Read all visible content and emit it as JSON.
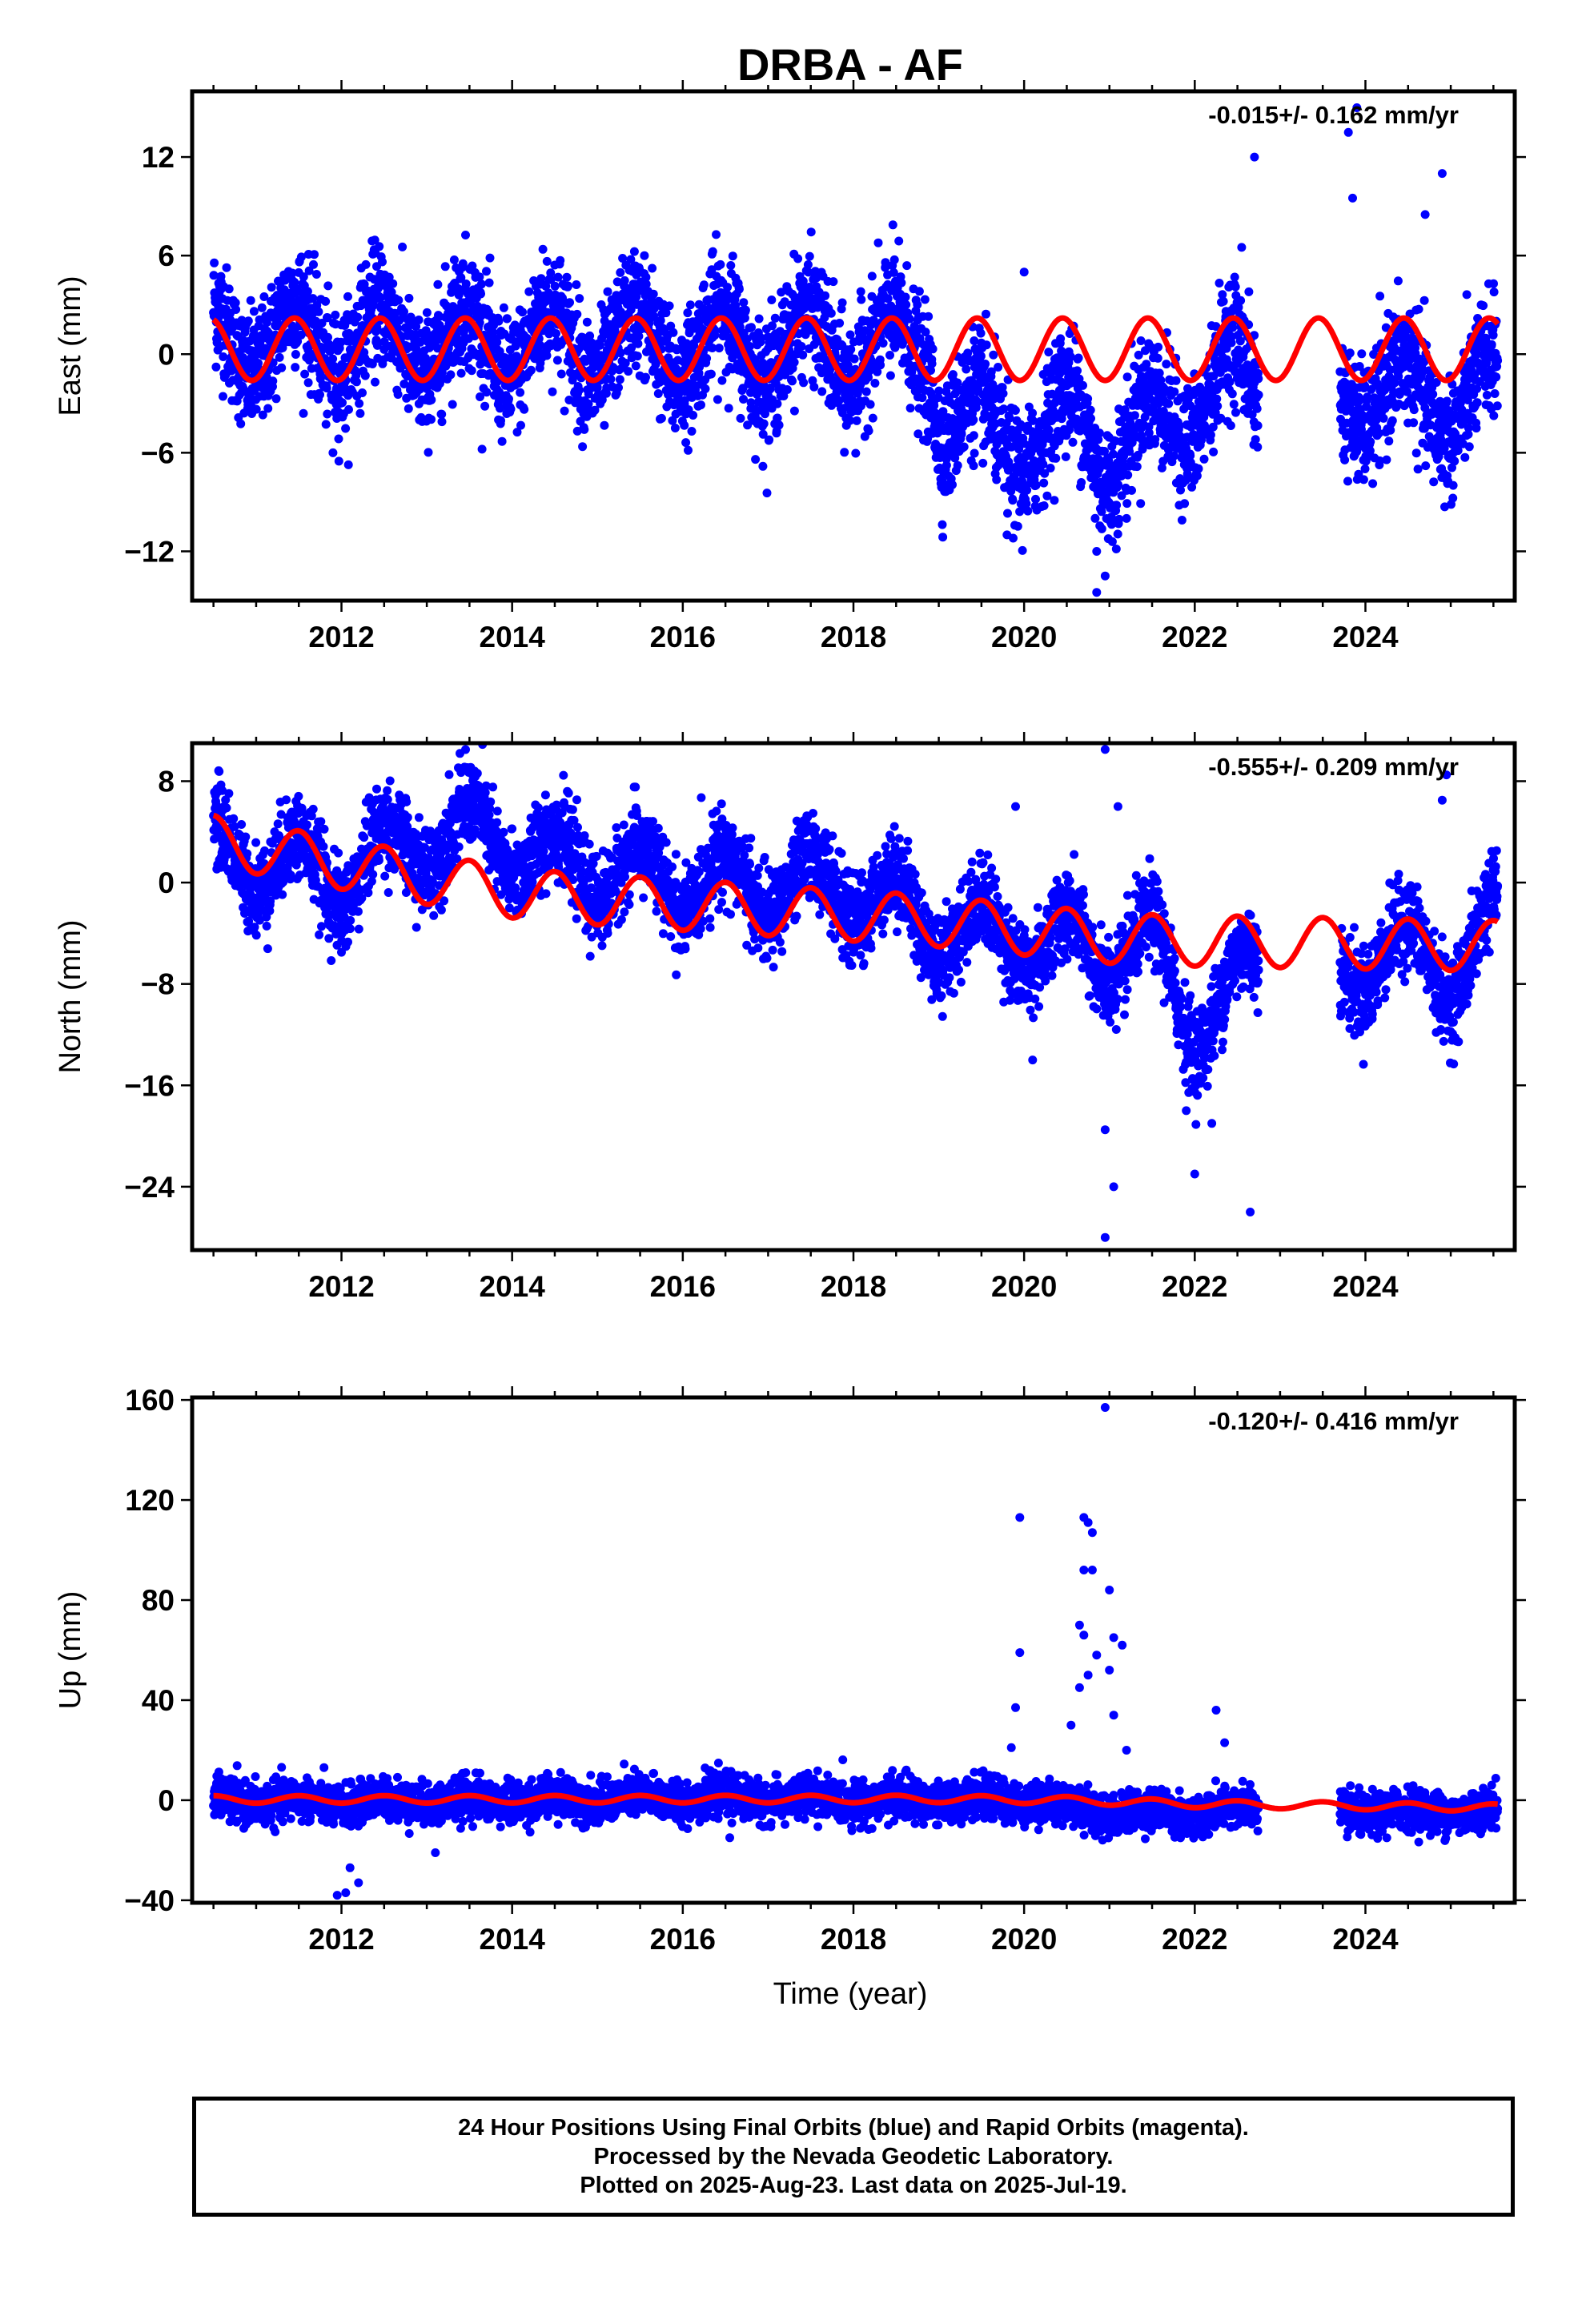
{
  "title": "DRBA - AF",
  "xlabel": "Time (year)",
  "colors": {
    "final_orbits": "#0000ff",
    "model_fit": "#ff0000",
    "frame": "#000000"
  },
  "notes": [
    "24 Hour Positions Using Final Orbits (blue) and Rapid Orbits (magenta).",
    "Processed by the Nevada Geodetic Laboratory.",
    "Plotted on 2025-Aug-23. Last data on 2025-Jul-19."
  ],
  "chart_data": [
    {
      "type": "scatter",
      "component": "East",
      "ylabel": "East (mm)",
      "rate_label": "-0.015+/- 0.162 mm/yr",
      "xlim": [
        2010.25,
        2025.75
      ],
      "ylim": [
        -15,
        16
      ],
      "xticks": [
        2012,
        2014,
        2016,
        2018,
        2020,
        2022,
        2024
      ],
      "yticks": [
        -12,
        -6,
        0,
        6,
        12
      ],
      "data_range": [
        2010.5,
        2025.55
      ],
      "gaps": [
        [
          2022.75,
          2023.7
        ]
      ],
      "mean_envelope": [
        {
          "x": 2010.5,
          "y": 1.0
        },
        {
          "x": 2018.9,
          "y": 0.3
        },
        {
          "x": 2019.05,
          "y": -4.0
        },
        {
          "x": 2019.6,
          "y": -4.5
        },
        {
          "x": 2020.2,
          "y": -5.5
        },
        {
          "x": 2020.6,
          "y": -3.5
        },
        {
          "x": 2021.0,
          "y": -6.0
        },
        {
          "x": 2021.5,
          "y": -4.5
        },
        {
          "x": 2022.0,
          "y": -3.0
        },
        {
          "x": 2022.4,
          "y": -1.0
        },
        {
          "x": 2022.75,
          "y": -2.5
        },
        {
          "x": 2023.7,
          "y": -2.0
        },
        {
          "x": 2024.2,
          "y": -2.5
        },
        {
          "x": 2025.0,
          "y": -3.0
        },
        {
          "x": 2025.55,
          "y": -2.0
        }
      ],
      "seasonal_amplitude": 2.2,
      "scatter_sigma": 1.8,
      "outliers": [
        {
          "x": 2023.9,
          "y": 15.0
        },
        {
          "x": 2023.8,
          "y": 13.5
        },
        {
          "x": 2022.7,
          "y": 12.0
        },
        {
          "x": 2024.9,
          "y": 11.0
        },
        {
          "x": 2023.85,
          "y": 9.5
        },
        {
          "x": 2024.7,
          "y": 8.5
        },
        {
          "x": 2020.0,
          "y": 5.0
        },
        {
          "x": 2020.85,
          "y": -12.0
        },
        {
          "x": 2020.95,
          "y": -13.5
        },
        {
          "x": 2020.85,
          "y": -14.5
        },
        {
          "x": 2019.8,
          "y": -11.0
        },
        {
          "x": 2011.9,
          "y": -6.0
        },
        {
          "x": 2022.55,
          "y": 6.5
        },
        {
          "x": 2021.2,
          "y": -10.0
        }
      ],
      "model": {
        "offset": [
          {
            "x": 2010.5,
            "y": 0.3
          },
          {
            "x": 2018.9,
            "y": 0.3
          },
          {
            "x": 2025.55,
            "y": 0.3
          }
        ],
        "annual_amplitude": 1.9,
        "peak_phase": 0.45
      }
    },
    {
      "type": "scatter",
      "component": "North",
      "ylabel": "North (mm)",
      "rate_label": "-0.555+/- 0.209 mm/yr",
      "xlim": [
        2010.25,
        2025.75
      ],
      "ylim": [
        -29,
        11
      ],
      "xticks": [
        2012,
        2014,
        2016,
        2018,
        2020,
        2022,
        2024
      ],
      "yticks": [
        -24,
        -16,
        -8,
        0,
        8
      ],
      "data_range": [
        2010.5,
        2025.55
      ],
      "gaps": [
        [
          2022.75,
          2023.7
        ]
      ],
      "mean_envelope": [
        {
          "x": 2010.5,
          "y": 2.5
        },
        {
          "x": 2012.0,
          "y": 0.5
        },
        {
          "x": 2013.0,
          "y": 3.5
        },
        {
          "x": 2013.6,
          "y": 4.0
        },
        {
          "x": 2014.5,
          "y": 1.5
        },
        {
          "x": 2016.0,
          "y": 0.0
        },
        {
          "x": 2018.0,
          "y": -0.5
        },
        {
          "x": 2019.0,
          "y": -3.5
        },
        {
          "x": 2020.0,
          "y": -4.5
        },
        {
          "x": 2021.0,
          "y": -5.5
        },
        {
          "x": 2021.5,
          "y": -5.0
        },
        {
          "x": 2022.0,
          "y": -11.0
        },
        {
          "x": 2022.3,
          "y": -10.0
        },
        {
          "x": 2022.75,
          "y": -6.0
        },
        {
          "x": 2023.7,
          "y": -7.5
        },
        {
          "x": 2024.2,
          "y": -5.0
        },
        {
          "x": 2025.0,
          "y": -7.0
        },
        {
          "x": 2025.55,
          "y": -3.0
        }
      ],
      "seasonal_amplitude": 2.5,
      "scatter_sigma": 1.7,
      "outliers": [
        {
          "x": 2020.95,
          "y": 10.5
        },
        {
          "x": 2024.95,
          "y": 8.5
        },
        {
          "x": 2021.1,
          "y": 6.0
        },
        {
          "x": 2019.9,
          "y": 6.0
        },
        {
          "x": 2024.9,
          "y": 6.5
        },
        {
          "x": 2020.95,
          "y": -28.0
        },
        {
          "x": 2021.05,
          "y": -24.0
        },
        {
          "x": 2020.95,
          "y": -19.5
        },
        {
          "x": 2022.0,
          "y": -23.0
        },
        {
          "x": 2022.65,
          "y": -26.0
        },
        {
          "x": 2022.2,
          "y": -19.0
        },
        {
          "x": 2020.1,
          "y": -14.0
        },
        {
          "x": 2021.9,
          "y": -18.0
        },
        {
          "x": 2018.0,
          "y": -5.5
        },
        {
          "x": 2012.0,
          "y": -5.5
        }
      ],
      "model": {
        "offset": [
          {
            "x": 2010.5,
            "y": 3.3
          },
          {
            "x": 2012.8,
            "y": 0.5
          },
          {
            "x": 2014.2,
            "y": -1.0
          },
          {
            "x": 2018.9,
            "y": -3.0
          },
          {
            "x": 2021.2,
            "y": -4.5
          },
          {
            "x": 2025.55,
            "y": -5.0
          }
        ],
        "annual_amplitude": 2.0,
        "peak_phase": 0.5
      }
    },
    {
      "type": "scatter",
      "component": "Up",
      "ylabel": "Up (mm)",
      "rate_label": "-0.120+/- 0.416 mm/yr",
      "xlim": [
        2010.25,
        2025.75
      ],
      "ylim": [
        -41,
        161
      ],
      "xticks": [
        2012,
        2014,
        2016,
        2018,
        2020,
        2022,
        2024
      ],
      "yticks": [
        -40,
        0,
        40,
        80,
        120,
        160
      ],
      "data_range": [
        2010.5,
        2025.55
      ],
      "gaps": [
        [
          2022.75,
          2023.7
        ]
      ],
      "mean_envelope": [
        {
          "x": 2010.5,
          "y": 0.0
        },
        {
          "x": 2012.0,
          "y": -1.0
        },
        {
          "x": 2016.0,
          "y": 1.0
        },
        {
          "x": 2018.0,
          "y": 0.0
        },
        {
          "x": 2020.0,
          "y": 0.0
        },
        {
          "x": 2021.0,
          "y": -5.0
        },
        {
          "x": 2022.0,
          "y": -5.0
        },
        {
          "x": 2022.75,
          "y": -3.0
        },
        {
          "x": 2023.7,
          "y": -5.0
        },
        {
          "x": 2025.55,
          "y": -4.0
        }
      ],
      "seasonal_amplitude": 1.5,
      "scatter_sigma": 4.0,
      "outliers": [
        {
          "x": 2020.95,
          "y": 157.0
        },
        {
          "x": 2019.95,
          "y": 113.0
        },
        {
          "x": 2020.7,
          "y": 113.0
        },
        {
          "x": 2020.75,
          "y": 111.0
        },
        {
          "x": 2020.8,
          "y": 107.0
        },
        {
          "x": 2020.7,
          "y": 92.0
        },
        {
          "x": 2020.8,
          "y": 92.0
        },
        {
          "x": 2021.0,
          "y": 84.0
        },
        {
          "x": 2020.65,
          "y": 70.0
        },
        {
          "x": 2020.7,
          "y": 66.0
        },
        {
          "x": 2021.05,
          "y": 65.0
        },
        {
          "x": 2021.15,
          "y": 62.0
        },
        {
          "x": 2019.95,
          "y": 59.0
        },
        {
          "x": 2020.85,
          "y": 58.0
        },
        {
          "x": 2021.0,
          "y": 52.0
        },
        {
          "x": 2020.75,
          "y": 50.0
        },
        {
          "x": 2020.65,
          "y": 45.0
        },
        {
          "x": 2019.9,
          "y": 37.0
        },
        {
          "x": 2021.05,
          "y": 34.0
        },
        {
          "x": 2022.25,
          "y": 36.0
        },
        {
          "x": 2020.55,
          "y": 30.0
        },
        {
          "x": 2022.35,
          "y": 23.0
        },
        {
          "x": 2012.05,
          "y": -37.0
        },
        {
          "x": 2012.2,
          "y": -33.0
        },
        {
          "x": 2011.95,
          "y": -38.0
        },
        {
          "x": 2012.1,
          "y": -27.0
        },
        {
          "x": 2013.1,
          "y": -21.0
        },
        {
          "x": 2016.55,
          "y": -15.0
        },
        {
          "x": 2021.2,
          "y": 20.0
        },
        {
          "x": 2019.85,
          "y": 21.0
        }
      ],
      "model": {
        "offset": [
          {
            "x": 2010.5,
            "y": 0.3
          },
          {
            "x": 2019.0,
            "y": 0.5
          },
          {
            "x": 2020.5,
            "y": 0.0
          },
          {
            "x": 2022.0,
            "y": -1.5
          },
          {
            "x": 2025.55,
            "y": -3.0
          }
        ],
        "annual_amplitude": 1.5,
        "peak_phase": 0.5
      }
    }
  ]
}
